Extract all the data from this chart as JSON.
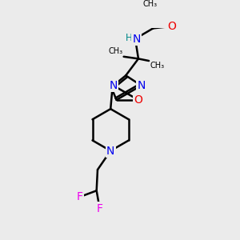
{
  "bg_color": "#ebebeb",
  "atom_colors": {
    "C": "#000000",
    "N": "#0000ee",
    "O": "#ee0000",
    "F": "#ee00ee",
    "H": "#008888"
  },
  "bond_color": "#000000",
  "bond_width": 1.8,
  "figsize": [
    3.0,
    3.0
  ],
  "dpi": 100,
  "xlim": [
    0,
    10
  ],
  "ylim": [
    0,
    10
  ]
}
